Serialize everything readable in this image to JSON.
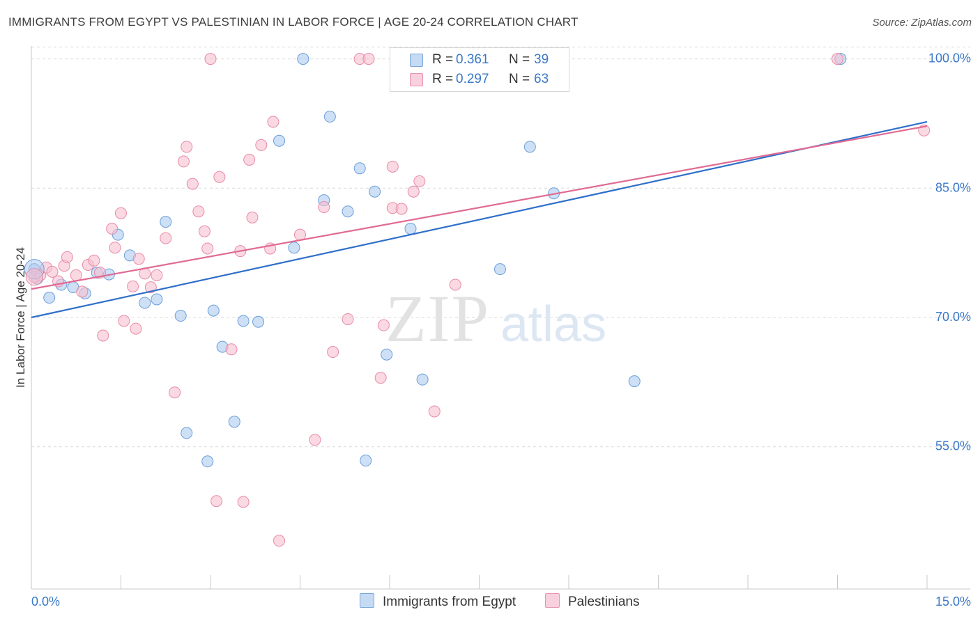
{
  "title": "IMMIGRANTS FROM EGYPT VS PALESTINIAN IN LABOR FORCE | AGE 20-24 CORRELATION CHART",
  "source": "Source: ZipAtlas.com",
  "watermark": {
    "zip": "ZIP",
    "atlas": "atlas"
  },
  "colors": {
    "blue_fill": "#aecbee",
    "blue_stroke": "#6a9edb",
    "blue_line": "#2f6fcb",
    "pink_fill": "#f6bfd0",
    "pink_stroke": "#e88aa8",
    "pink_line": "#e06a93",
    "tick_label": "#3a78c8",
    "grid": "#d9d9d9"
  },
  "legend": {
    "rows": [
      {
        "r_label": "R =",
        "r_value": "0.361",
        "n_label": "N =",
        "n_value": "39"
      },
      {
        "r_label": "R =",
        "r_value": "0.297",
        "n_label": "N =",
        "n_value": "63"
      }
    ]
  },
  "chart_data": {
    "type": "scatter",
    "title": "IMMIGRANTS FROM EGYPT VS PALESTINIAN IN LABOR FORCE | AGE 20-24 CORRELATION CHART",
    "xlabel": "",
    "ylabel": "In Labor Force | Age 20-24",
    "xlim": [
      0,
      15
    ],
    "ylim": [
      38.5,
      101.5
    ],
    "x_tick_labels": [
      "0.0%",
      "15.0%"
    ],
    "y_ticks": [
      55,
      70,
      85,
      100
    ],
    "y_tick_labels": [
      "55.0%",
      "70.0%",
      "85.0%",
      "100.0%"
    ],
    "grid": true,
    "legend_position": "top-center",
    "series": [
      {
        "name": "Immigrants from Egypt",
        "color": "#aecbee",
        "r": 0.361,
        "n": 39,
        "trend": {
          "x": [
            0,
            15
          ],
          "y": [
            70.0,
            92.7
          ]
        },
        "points": [
          [
            0.05,
            75.6
          ],
          [
            0.1,
            74.5
          ],
          [
            0.3,
            72.3
          ],
          [
            0.5,
            73.8
          ],
          [
            0.7,
            73.5
          ],
          [
            0.9,
            72.8
          ],
          [
            1.1,
            75.2
          ],
          [
            1.3,
            75.0
          ],
          [
            1.45,
            79.6
          ],
          [
            1.65,
            77.2
          ],
          [
            1.9,
            71.7
          ],
          [
            2.1,
            72.1
          ],
          [
            2.25,
            81.1
          ],
          [
            2.5,
            70.2
          ],
          [
            2.6,
            56.6
          ],
          [
            2.95,
            53.3
          ],
          [
            3.05,
            70.8
          ],
          [
            3.2,
            66.6
          ],
          [
            3.4,
            57.9
          ],
          [
            3.55,
            69.6
          ],
          [
            3.8,
            69.5
          ],
          [
            4.15,
            90.5
          ],
          [
            4.4,
            78.1
          ],
          [
            4.55,
            100.0
          ],
          [
            4.9,
            83.6
          ],
          [
            5.0,
            93.3
          ],
          [
            5.3,
            82.3
          ],
          [
            5.5,
            87.3
          ],
          [
            5.6,
            53.4
          ],
          [
            5.75,
            84.6
          ],
          [
            5.95,
            65.7
          ],
          [
            6.35,
            80.3
          ],
          [
            6.55,
            62.8
          ],
          [
            6.95,
            100.0
          ],
          [
            7.85,
            75.6
          ],
          [
            8.35,
            89.8
          ],
          [
            8.75,
            84.4
          ],
          [
            10.1,
            62.6
          ],
          [
            13.55,
            100.0
          ]
        ]
      },
      {
        "name": "Palestinians",
        "color": "#f6bfd0",
        "r": 0.297,
        "n": 63,
        "trend": {
          "x": [
            0,
            15
          ],
          "y": [
            73.3,
            92.2
          ]
        },
        "points": [
          [
            0.05,
            74.7
          ],
          [
            0.15,
            74.9
          ],
          [
            0.25,
            75.8
          ],
          [
            0.35,
            75.3
          ],
          [
            0.45,
            74.2
          ],
          [
            0.55,
            76.0
          ],
          [
            0.6,
            77.0
          ],
          [
            0.75,
            74.9
          ],
          [
            0.85,
            73.0
          ],
          [
            0.95,
            76.1
          ],
          [
            1.05,
            76.6
          ],
          [
            1.15,
            75.2
          ],
          [
            1.2,
            67.9
          ],
          [
            1.35,
            80.3
          ],
          [
            1.4,
            78.1
          ],
          [
            1.5,
            82.1
          ],
          [
            1.55,
            69.6
          ],
          [
            1.7,
            73.6
          ],
          [
            1.75,
            68.7
          ],
          [
            1.8,
            76.8
          ],
          [
            1.9,
            75.1
          ],
          [
            2.0,
            73.5
          ],
          [
            2.1,
            74.9
          ],
          [
            2.25,
            79.2
          ],
          [
            2.4,
            61.3
          ],
          [
            2.55,
            88.1
          ],
          [
            2.6,
            89.8
          ],
          [
            2.7,
            85.5
          ],
          [
            2.8,
            82.3
          ],
          [
            2.9,
            80.0
          ],
          [
            2.95,
            78.0
          ],
          [
            3.0,
            100.0
          ],
          [
            3.1,
            48.7
          ],
          [
            3.15,
            86.3
          ],
          [
            3.35,
            66.3
          ],
          [
            3.5,
            77.7
          ],
          [
            3.55,
            48.6
          ],
          [
            3.65,
            88.3
          ],
          [
            3.7,
            81.6
          ],
          [
            3.85,
            90.0
          ],
          [
            4.0,
            78.0
          ],
          [
            4.05,
            92.7
          ],
          [
            4.15,
            44.1
          ],
          [
            4.5,
            79.6
          ],
          [
            4.75,
            55.8
          ],
          [
            4.9,
            82.8
          ],
          [
            5.05,
            66.0
          ],
          [
            5.3,
            69.8
          ],
          [
            5.5,
            100.0
          ],
          [
            5.65,
            100.0
          ],
          [
            5.85,
            63.0
          ],
          [
            5.9,
            69.1
          ],
          [
            6.05,
            87.5
          ],
          [
            6.05,
            82.7
          ],
          [
            6.2,
            82.6
          ],
          [
            6.4,
            84.6
          ],
          [
            6.5,
            85.8
          ],
          [
            6.75,
            59.1
          ],
          [
            7.1,
            73.8
          ],
          [
            7.2,
            100.0
          ],
          [
            7.85,
            100.0
          ],
          [
            13.5,
            100.0
          ],
          [
            14.95,
            91.7
          ]
        ]
      }
    ]
  }
}
